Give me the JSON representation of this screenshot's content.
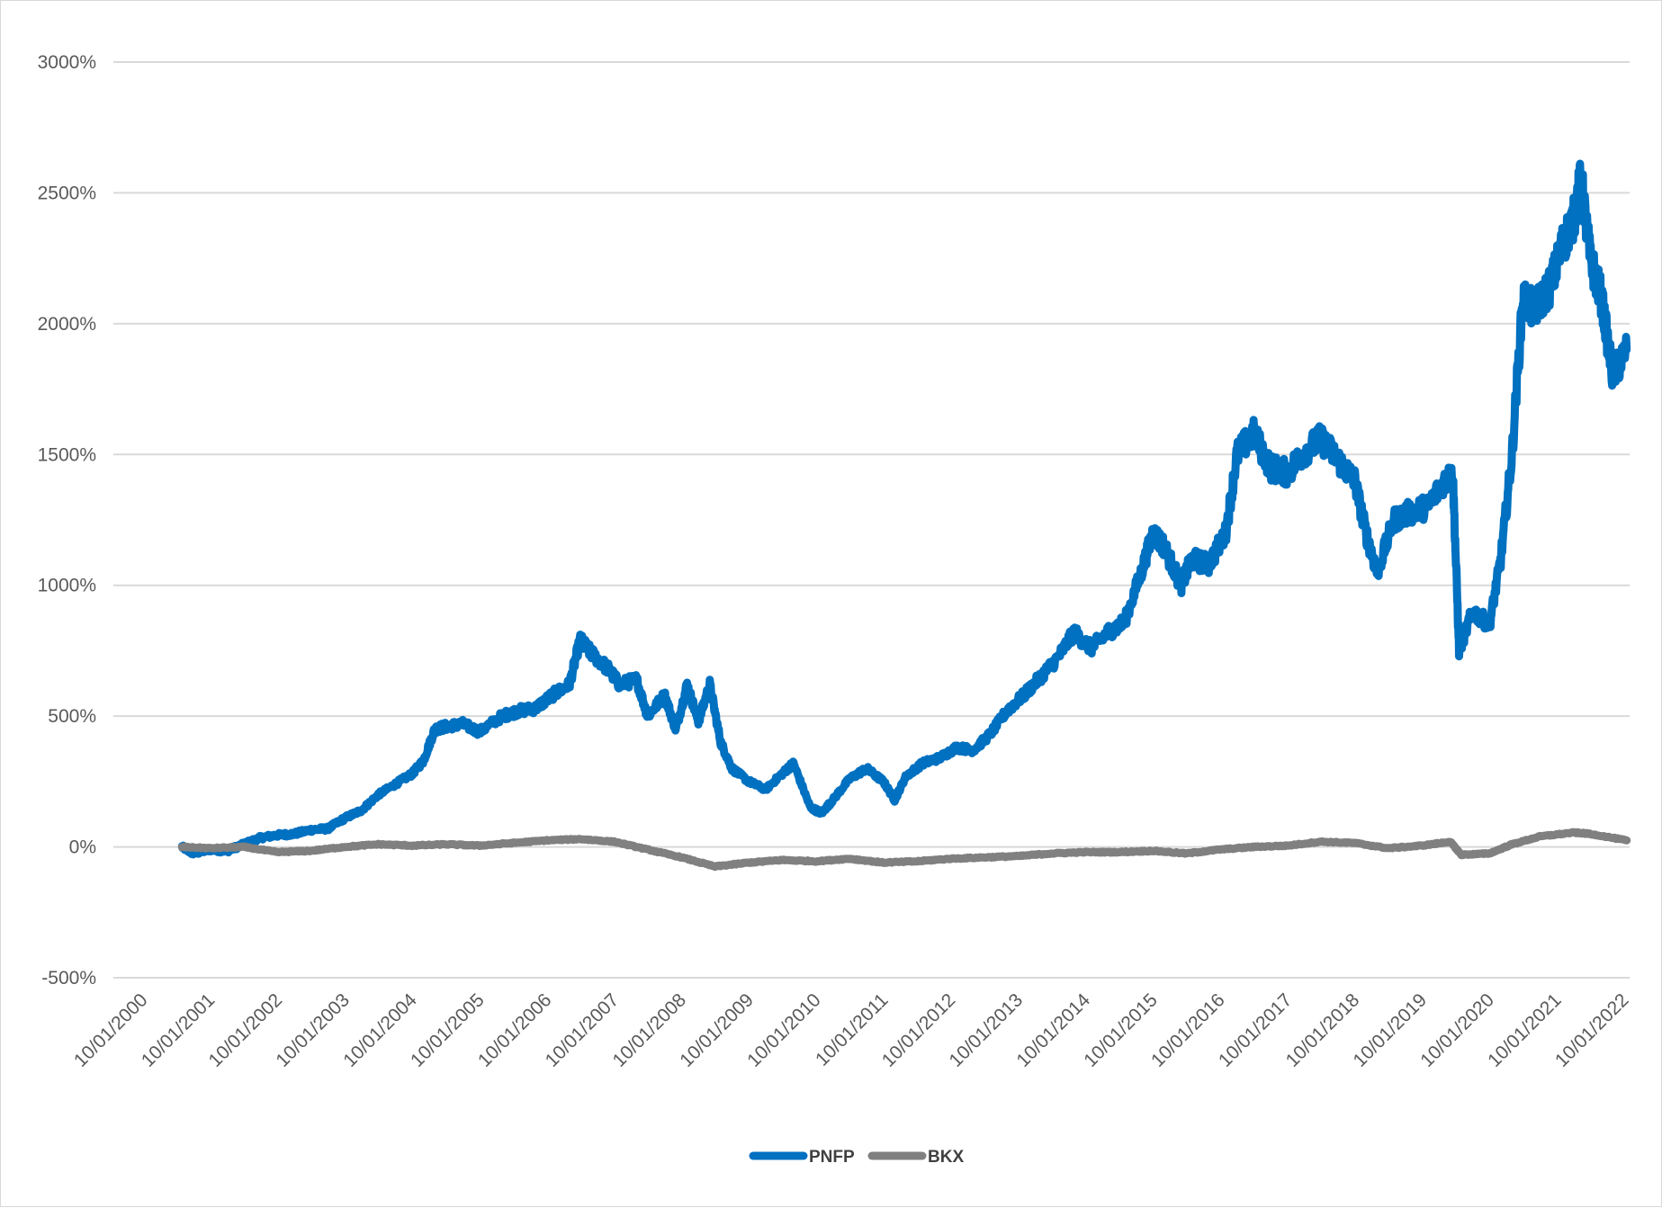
{
  "chart_data": {
    "type": "line",
    "title": "",
    "xlabel": "",
    "ylabel": "",
    "ylim": [
      -500,
      3000
    ],
    "y_ticks": [
      {
        "value": 3000,
        "label": "3000%"
      },
      {
        "value": 2500,
        "label": "2500%"
      },
      {
        "value": 2000,
        "label": "2000%"
      },
      {
        "value": 1500,
        "label": "1500%"
      },
      {
        "value": 1000,
        "label": "1000%"
      },
      {
        "value": 500,
        "label": "500%"
      },
      {
        "value": 0,
        "label": "0%"
      },
      {
        "value": -500,
        "label": "-500%"
      }
    ],
    "x_tick_labels": [
      "10/01/2000",
      "10/01/2001",
      "10/01/2002",
      "10/01/2003",
      "10/01/2004",
      "10/01/2005",
      "10/01/2006",
      "10/01/2007",
      "10/01/2008",
      "10/01/2009",
      "10/01/2010",
      "10/01/2011",
      "10/01/2012",
      "10/01/2013",
      "10/01/2014",
      "10/01/2015",
      "10/01/2016",
      "10/01/2017",
      "10/01/2018",
      "10/01/2019",
      "10/01/2020",
      "10/01/2021",
      "10/01/2022"
    ],
    "xlim": [
      "2000-10-01",
      "2022-10-01"
    ],
    "grid": true,
    "legend_position": "bottom",
    "series": [
      {
        "name": "PNFP",
        "color": "#0070c0",
        "points": [
          [
            "2001-04-01",
            0
          ],
          [
            "2001-06-01",
            -25
          ],
          [
            "2001-09-01",
            -10
          ],
          [
            "2001-12-01",
            -15
          ],
          [
            "2002-03-01",
            10
          ],
          [
            "2002-06-01",
            35
          ],
          [
            "2002-09-01",
            45
          ],
          [
            "2002-12-01",
            50
          ],
          [
            "2003-03-01",
            65
          ],
          [
            "2003-06-01",
            70
          ],
          [
            "2003-09-01",
            110
          ],
          [
            "2003-12-01",
            140
          ],
          [
            "2004-03-01",
            200
          ],
          [
            "2004-06-01",
            240
          ],
          [
            "2004-09-01",
            280
          ],
          [
            "2004-11-01",
            330
          ],
          [
            "2005-01-01",
            450
          ],
          [
            "2005-03-01",
            460
          ],
          [
            "2005-06-01",
            470
          ],
          [
            "2005-09-01",
            440
          ],
          [
            "2006-01-01",
            500
          ],
          [
            "2006-04-01",
            520
          ],
          [
            "2006-07-01",
            530
          ],
          [
            "2006-10-01",
            580
          ],
          [
            "2007-01-01",
            620
          ],
          [
            "2007-03-01",
            790
          ],
          [
            "2007-05-01",
            740
          ],
          [
            "2007-08-01",
            680
          ],
          [
            "2007-10-01",
            620
          ],
          [
            "2008-01-01",
            640
          ],
          [
            "2008-03-01",
            500
          ],
          [
            "2008-06-01",
            580
          ],
          [
            "2008-08-01",
            450
          ],
          [
            "2008-10-01",
            620
          ],
          [
            "2008-12-01",
            480
          ],
          [
            "2009-02-01",
            620
          ],
          [
            "2009-04-01",
            400
          ],
          [
            "2009-06-01",
            300
          ],
          [
            "2009-09-01",
            250
          ],
          [
            "2009-12-01",
            220
          ],
          [
            "2010-03-01",
            280
          ],
          [
            "2010-05-01",
            320
          ],
          [
            "2010-08-01",
            150
          ],
          [
            "2010-10-01",
            130
          ],
          [
            "2010-12-01",
            180
          ],
          [
            "2011-03-01",
            260
          ],
          [
            "2011-06-01",
            300
          ],
          [
            "2011-09-01",
            250
          ],
          [
            "2011-11-01",
            180
          ],
          [
            "2012-01-01",
            270
          ],
          [
            "2012-04-01",
            320
          ],
          [
            "2012-07-01",
            340
          ],
          [
            "2012-10-01",
            380
          ],
          [
            "2013-01-01",
            370
          ],
          [
            "2013-04-01",
            430
          ],
          [
            "2013-07-01",
            520
          ],
          [
            "2013-10-01",
            580
          ],
          [
            "2014-01-01",
            650
          ],
          [
            "2014-04-01",
            720
          ],
          [
            "2014-07-01",
            820
          ],
          [
            "2014-10-01",
            760
          ],
          [
            "2015-01-01",
            820
          ],
          [
            "2015-04-01",
            860
          ],
          [
            "2015-07-01",
            1050
          ],
          [
            "2015-09-01",
            1200
          ],
          [
            "2015-11-01",
            1150
          ],
          [
            "2016-02-01",
            1000
          ],
          [
            "2016-04-01",
            1100
          ],
          [
            "2016-07-01",
            1080
          ],
          [
            "2016-10-01",
            1200
          ],
          [
            "2016-12-01",
            1500
          ],
          [
            "2017-03-01",
            1580
          ],
          [
            "2017-06-01",
            1450
          ],
          [
            "2017-09-01",
            1430
          ],
          [
            "2017-12-01",
            1510
          ],
          [
            "2018-03-01",
            1560
          ],
          [
            "2018-06-01",
            1480
          ],
          [
            "2018-09-01",
            1400
          ],
          [
            "2018-11-01",
            1200
          ],
          [
            "2019-01-01",
            1050
          ],
          [
            "2019-04-01",
            1250
          ],
          [
            "2019-07-01",
            1280
          ],
          [
            "2019-10-01",
            1300
          ],
          [
            "2020-01-01",
            1400
          ],
          [
            "2020-02-15",
            1420
          ],
          [
            "2020-03-20",
            750
          ],
          [
            "2020-06-01",
            900
          ],
          [
            "2020-09-01",
            850
          ],
          [
            "2020-11-01",
            1100
          ],
          [
            "2021-01-01",
            1500
          ],
          [
            "2021-03-01",
            2100
          ],
          [
            "2021-05-01",
            2050
          ],
          [
            "2021-08-01",
            2150
          ],
          [
            "2021-10-01",
            2300
          ],
          [
            "2021-12-01",
            2400
          ],
          [
            "2022-01-10",
            2550
          ],
          [
            "2022-03-01",
            2250
          ],
          [
            "2022-05-01",
            2100
          ],
          [
            "2022-07-01",
            1800
          ],
          [
            "2022-09-15",
            1900
          ]
        ]
      },
      {
        "name": "BKX",
        "color": "#808080",
        "points": [
          [
            "2001-04-01",
            0
          ],
          [
            "2001-09-01",
            -5
          ],
          [
            "2002-03-01",
            0
          ],
          [
            "2002-09-01",
            -20
          ],
          [
            "2003-03-01",
            -15
          ],
          [
            "2003-09-01",
            0
          ],
          [
            "2004-03-01",
            10
          ],
          [
            "2004-09-01",
            5
          ],
          [
            "2005-03-01",
            10
          ],
          [
            "2005-09-01",
            5
          ],
          [
            "2006-03-01",
            15
          ],
          [
            "2006-09-01",
            25
          ],
          [
            "2007-03-01",
            30
          ],
          [
            "2007-09-01",
            20
          ],
          [
            "2008-03-01",
            -10
          ],
          [
            "2008-09-01",
            -40
          ],
          [
            "2009-03-01",
            -75
          ],
          [
            "2009-09-01",
            -60
          ],
          [
            "2010-03-01",
            -50
          ],
          [
            "2010-09-01",
            -55
          ],
          [
            "2011-03-01",
            -45
          ],
          [
            "2011-09-01",
            -60
          ],
          [
            "2012-03-01",
            -55
          ],
          [
            "2012-09-01",
            -45
          ],
          [
            "2013-03-01",
            -40
          ],
          [
            "2013-09-01",
            -35
          ],
          [
            "2014-03-01",
            -25
          ],
          [
            "2014-09-01",
            -20
          ],
          [
            "2015-03-01",
            -20
          ],
          [
            "2015-09-01",
            -15
          ],
          [
            "2016-03-01",
            -25
          ],
          [
            "2016-09-01",
            -10
          ],
          [
            "2017-03-01",
            0
          ],
          [
            "2017-09-01",
            5
          ],
          [
            "2018-03-01",
            20
          ],
          [
            "2018-09-01",
            15
          ],
          [
            "2019-03-01",
            -5
          ],
          [
            "2019-09-01",
            5
          ],
          [
            "2020-02-01",
            20
          ],
          [
            "2020-04-01",
            -30
          ],
          [
            "2020-09-01",
            -25
          ],
          [
            "2021-01-01",
            10
          ],
          [
            "2021-06-01",
            40
          ],
          [
            "2021-12-01",
            55
          ],
          [
            "2022-03-01",
            50
          ],
          [
            "2022-09-15",
            25
          ]
        ]
      }
    ]
  }
}
